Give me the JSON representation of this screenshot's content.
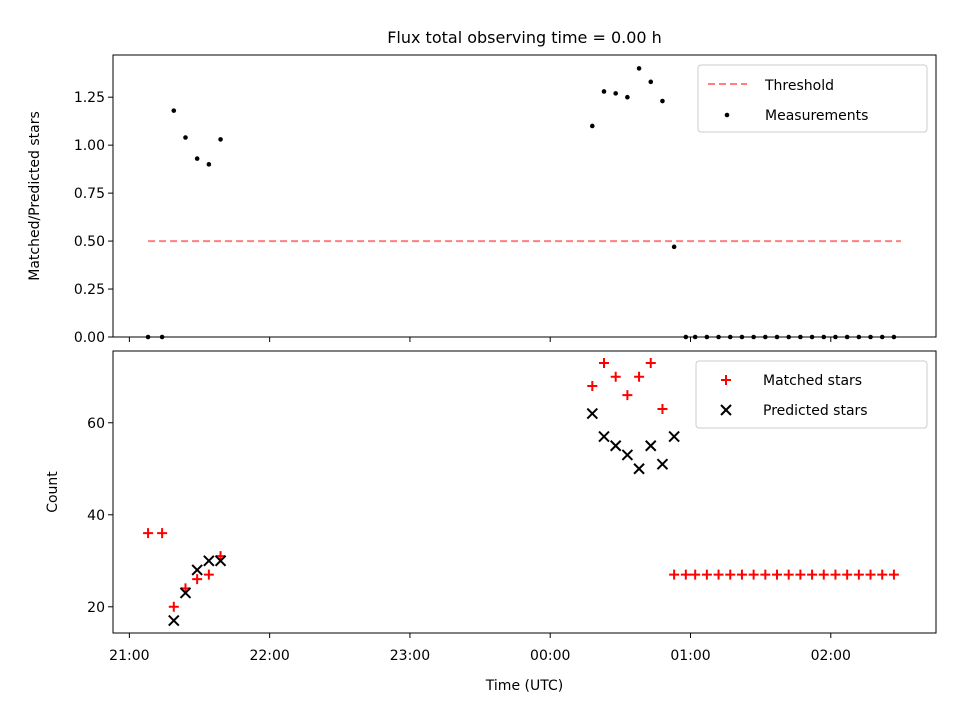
{
  "title": "Flux total observing time = 0.00 h",
  "xaxis": {
    "label": "Time (UTC)",
    "ticks": [
      {
        "t": 0,
        "label": "21:00"
      },
      {
        "t": 60,
        "label": "22:00"
      },
      {
        "t": 120,
        "label": "23:00"
      },
      {
        "t": 180,
        "label": "00:00"
      },
      {
        "t": 240,
        "label": "01:00"
      },
      {
        "t": 300,
        "label": "02:00"
      }
    ]
  },
  "chart_data": [
    {
      "type": "scatter",
      "ylabel": "Matched/Predicted stars",
      "xlim": [
        "20:53",
        "02:45"
      ],
      "ylim": [
        0,
        1.47
      ],
      "yticks": [
        "0.00",
        "0.25",
        "0.50",
        "0.75",
        "1.00",
        "1.25"
      ],
      "legend_position": "top-right",
      "threshold": {
        "name": "Threshold",
        "y": 0.5,
        "x_from": "21:08",
        "x_to": "02:30",
        "color": "#ff7f7f"
      },
      "series": [
        {
          "name": "Measurements",
          "color": "#000000",
          "x": [
            "21:08",
            "21:14",
            "21:19",
            "21:24",
            "21:29",
            "21:34",
            "21:39",
            "00:18",
            "00:23",
            "00:28",
            "00:33",
            "00:38",
            "00:43",
            "00:48",
            "00:53",
            "00:58",
            "01:02",
            "01:07",
            "01:12",
            "01:17",
            "01:22",
            "01:27",
            "01:32",
            "01:37",
            "01:42",
            "01:47",
            "01:52",
            "01:57",
            "02:02",
            "02:07",
            "02:12",
            "02:17",
            "02:22",
            "02:27"
          ],
          "y": [
            0,
            0,
            1.18,
            1.04,
            0.93,
            0.9,
            1.03,
            1.1,
            1.28,
            1.27,
            1.25,
            1.4,
            1.33,
            1.23,
            0.47,
            0,
            0,
            0,
            0,
            0,
            0,
            0,
            0,
            0,
            0,
            0,
            0,
            0,
            0,
            0,
            0,
            0,
            0,
            0
          ]
        }
      ]
    },
    {
      "type": "scatter",
      "ylabel": "Count",
      "xlim": [
        "20:53",
        "02:45"
      ],
      "ylim": [
        14.3,
        75.6
      ],
      "yticks": [
        "20",
        "40",
        "60"
      ],
      "legend_position": "top-right",
      "series": [
        {
          "name": "Matched stars",
          "marker": "+",
          "color": "#ff0000",
          "x": [
            "21:08",
            "21:14",
            "21:19",
            "21:24",
            "21:29",
            "21:34",
            "21:39",
            "00:18",
            "00:23",
            "00:28",
            "00:33",
            "00:38",
            "00:43",
            "00:48",
            "00:53",
            "00:58",
            "01:02",
            "01:07",
            "01:12",
            "01:17",
            "01:22",
            "01:27",
            "01:32",
            "01:37",
            "01:42",
            "01:47",
            "01:52",
            "01:57",
            "02:02",
            "02:07",
            "02:12",
            "02:17",
            "02:22",
            "02:27"
          ],
          "y": [
            36,
            36,
            20,
            24,
            26,
            27,
            31,
            68,
            73,
            70,
            66,
            70,
            73,
            63,
            27,
            27,
            27,
            27,
            27,
            27,
            27,
            27,
            27,
            27,
            27,
            27,
            27,
            27,
            27,
            27,
            27,
            27,
            27,
            27
          ]
        },
        {
          "name": "Predicted stars",
          "marker": "x",
          "color": "#000000",
          "x": [
            "21:19",
            "21:24",
            "21:29",
            "21:34",
            "21:39",
            "00:18",
            "00:23",
            "00:28",
            "00:33",
            "00:38",
            "00:43",
            "00:48",
            "00:53"
          ],
          "y": [
            17,
            23,
            28,
            30,
            30,
            62,
            57,
            55,
            53,
            50,
            55,
            51,
            57
          ]
        }
      ]
    }
  ]
}
